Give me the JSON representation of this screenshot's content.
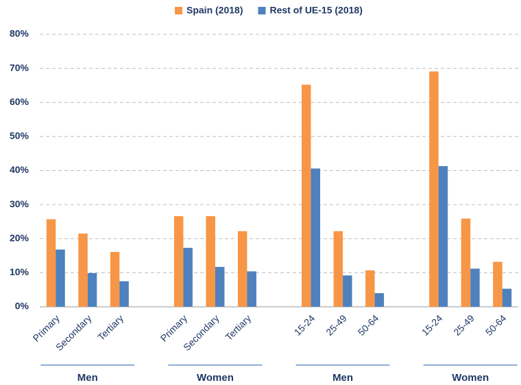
{
  "chart_data": {
    "type": "bar",
    "categories": [
      "Primary",
      "Secondary",
      "Tertiary",
      null,
      "Primary",
      "Secondary",
      "Tertiary",
      null,
      "15-24",
      "25-49",
      "50-64",
      null,
      "15-24",
      "25-49",
      "50-64"
    ],
    "group_labels": [
      "Men",
      "Women",
      "Men",
      "Women"
    ],
    "series": [
      {
        "name": "Spain (2018)",
        "color": "#f79646",
        "values": [
          25.7,
          21.5,
          16.1,
          null,
          26.6,
          26.6,
          22.2,
          null,
          65.2,
          22.2,
          10.7,
          null,
          69.1,
          25.9,
          13.2
        ]
      },
      {
        "name": "Rest of UE-15 (2018)",
        "color": "#4f81bd",
        "values": [
          16.8,
          9.9,
          7.5,
          null,
          17.3,
          11.7,
          10.4,
          null,
          40.6,
          9.2,
          4.0,
          null,
          41.3,
          11.2,
          5.3
        ]
      }
    ],
    "ylim": [
      0,
      80
    ],
    "yticks": [
      {
        "value": 0,
        "label": "0%"
      },
      {
        "value": 10,
        "label": "10%"
      },
      {
        "value": 20,
        "label": "20%"
      },
      {
        "value": 30,
        "label": "30%"
      },
      {
        "value": 40,
        "label": "40%"
      },
      {
        "value": 50,
        "label": "50%"
      },
      {
        "value": 60,
        "label": "60%"
      },
      {
        "value": 70,
        "label": "70%"
      },
      {
        "value": 80,
        "label": "80%"
      }
    ],
    "grid": true,
    "legend": "top"
  }
}
